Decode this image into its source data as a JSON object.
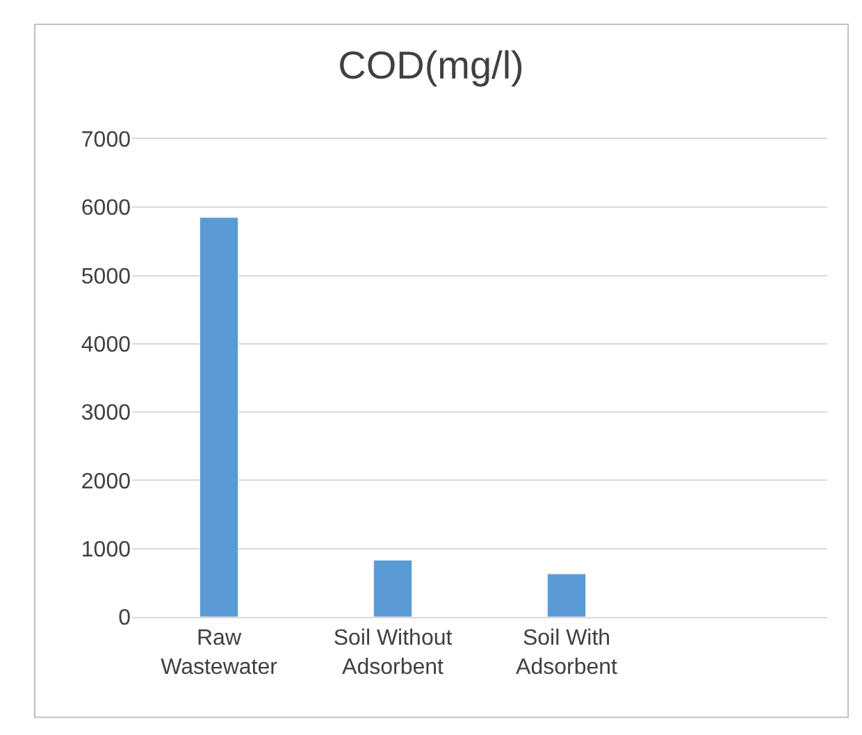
{
  "chart_data": {
    "type": "bar",
    "title": "COD(mg/l)",
    "categories": [
      "Raw Wastewater",
      "Soil Without Adsorbent",
      "Soil With Adsorbent",
      null
    ],
    "values": [
      5850,
      830,
      630,
      null
    ],
    "color": "#5b9bd5",
    "ylim": [
      0,
      7000
    ],
    "yticks": [
      0,
      1000,
      2000,
      3000,
      4000,
      5000,
      6000,
      7000
    ],
    "grid": "y"
  }
}
